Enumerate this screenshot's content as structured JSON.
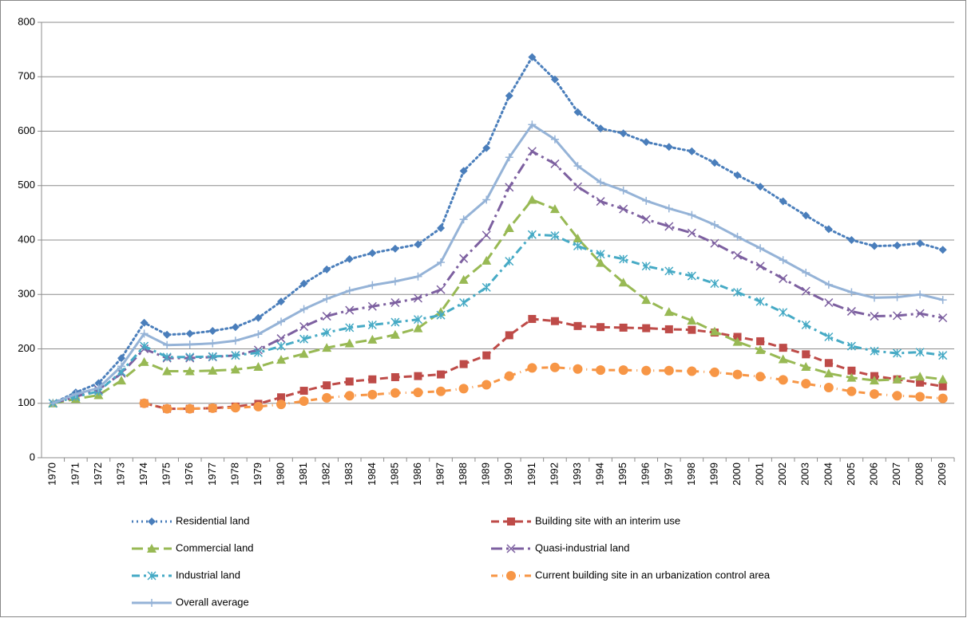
{
  "chart_data": {
    "type": "line",
    "categories": [
      "1970",
      "1971",
      "1972",
      "1973",
      "1974",
      "1975",
      "1976",
      "1977",
      "1978",
      "1979",
      "1980",
      "1981",
      "1982",
      "1983",
      "1984",
      "1985",
      "1986",
      "1987",
      "1988",
      "1989",
      "1990",
      "1991",
      "1992",
      "1993",
      "1994",
      "1995",
      "1996",
      "1997",
      "1998",
      "1999",
      "2000",
      "2001",
      "2002",
      "2003",
      "2004",
      "2005",
      "2006",
      "2007",
      "2008",
      "2009"
    ],
    "ylim": [
      0,
      800
    ],
    "yticks": [
      0,
      100,
      200,
      300,
      400,
      500,
      600,
      700,
      800
    ],
    "grid": true,
    "series": [
      {
        "name": "Residential land",
        "color": "#4a7ebb",
        "marker": "diamond",
        "dash": "dot",
        "values": [
          100,
          120,
          137,
          183,
          248,
          226,
          228,
          233,
          240,
          257,
          287,
          320,
          346,
          365,
          376,
          384,
          392,
          422,
          527,
          569,
          665,
          736,
          695,
          635,
          605,
          596,
          580,
          571,
          563,
          542,
          519,
          498,
          471,
          445,
          420,
          400,
          389,
          390,
          394,
          382
        ]
      },
      {
        "name": "Building site with an interim use",
        "color": "#be4b48",
        "marker": "square",
        "dash": "dash",
        "values": [
          null,
          null,
          null,
          null,
          100,
          90,
          90,
          91,
          94,
          99,
          111,
          123,
          133,
          140,
          144,
          148,
          150,
          153,
          172,
          188,
          225,
          255,
          251,
          242,
          240,
          239,
          238,
          236,
          235,
          230,
          222,
          214,
          202,
          190,
          174,
          160,
          150,
          144,
          138,
          131
        ]
      },
      {
        "name": "Commercial land",
        "color": "#98b954",
        "marker": "triangle",
        "dash": "longdash",
        "values": [
          100,
          108,
          115,
          142,
          176,
          159,
          159,
          160,
          162,
          167,
          180,
          191,
          202,
          210,
          217,
          226,
          238,
          268,
          327,
          362,
          422,
          474,
          457,
          403,
          358,
          322,
          290,
          268,
          252,
          232,
          213,
          198,
          181,
          167,
          155,
          147,
          142,
          144,
          149,
          144
        ]
      },
      {
        "name": "Quasi-industrial land",
        "color": "#7d60a0",
        "marker": "x",
        "dash": "longdashdot",
        "values": [
          100,
          112,
          125,
          155,
          200,
          183,
          183,
          185,
          188,
          198,
          219,
          241,
          260,
          271,
          278,
          285,
          293,
          309,
          366,
          409,
          497,
          563,
          540,
          498,
          471,
          457,
          438,
          425,
          413,
          394,
          372,
          352,
          329,
          306,
          285,
          269,
          260,
          261,
          265,
          257
        ]
      },
      {
        "name": "Industrial land",
        "color": "#46aac5",
        "marker": "star",
        "dash": "dashdot",
        "values": [
          100,
          112,
          122,
          158,
          205,
          185,
          185,
          186,
          188,
          193,
          205,
          218,
          230,
          239,
          244,
          249,
          254,
          262,
          285,
          313,
          361,
          410,
          408,
          389,
          374,
          365,
          352,
          343,
          334,
          320,
          304,
          287,
          267,
          244,
          222,
          205,
          196,
          192,
          194,
          188
        ]
      },
      {
        "name": "Current building site in an urbanization control area",
        "color": "#f79646",
        "marker": "circle",
        "dash": "rounddashdot",
        "values": [
          null,
          null,
          null,
          null,
          100,
          90,
          90,
          91,
          92,
          94,
          98,
          104,
          110,
          114,
          116,
          119,
          120,
          122,
          127,
          134,
          150,
          165,
          166,
          163,
          161,
          161,
          160,
          160,
          159,
          157,
          153,
          149,
          143,
          136,
          129,
          122,
          117,
          114,
          112,
          109
        ]
      },
      {
        "name": "Overall average",
        "color": "#95b3d7",
        "marker": "plus",
        "dash": "solid",
        "values": [
          100,
          117,
          128,
          168,
          228,
          207,
          208,
          210,
          215,
          227,
          250,
          273,
          292,
          307,
          317,
          324,
          333,
          359,
          438,
          474,
          552,
          612,
          585,
          536,
          506,
          491,
          472,
          458,
          446,
          428,
          406,
          385,
          363,
          340,
          318,
          304,
          294,
          295,
          300,
          290
        ]
      }
    ]
  }
}
